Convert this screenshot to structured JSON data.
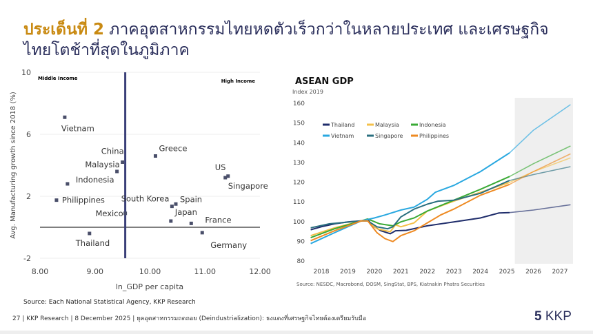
{
  "title": {
    "highlight": "ประเด็นที่ 2",
    "rest": " ภาคอุตสาหกรรมไทยหดตัวเร็วกว่าในหลายประเทศ และเศรษฐกิจไทยโตช้าที่สุดในภูมิภาค"
  },
  "chart_data": [
    {
      "type": "scatter",
      "xlabel": "ln_GDP per capita",
      "ylabel": "Avg. Manufacturing growth since 2018 (%)",
      "xlim": [
        8,
        12
      ],
      "ylim": [
        -2,
        10
      ],
      "xticks": [
        "8.00",
        "9.00",
        "10.00",
        "11.00",
        "12.00"
      ],
      "yticks": [
        "-2",
        "2",
        "6",
        "10"
      ],
      "grid": "horizontal",
      "annotations": [
        "Middle Income",
        "High Income"
      ],
      "divider_x": 9.55,
      "points": [
        {
          "label": "Vietnam",
          "x": 8.45,
          "y": 7.1
        },
        {
          "label": "Indonesia",
          "x": 8.5,
          "y": 2.8
        },
        {
          "label": "Philippines",
          "x": 8.3,
          "y": 1.75
        },
        {
          "label": "Thailand",
          "x": 8.9,
          "y": -0.4
        },
        {
          "label": "Malaysia",
          "x": 9.4,
          "y": 3.6
        },
        {
          "label": "China",
          "x": 9.5,
          "y": 4.2
        },
        {
          "label": "Mexico",
          "x": 9.55,
          "y": 0.9
        },
        {
          "label": "Greece",
          "x": 10.1,
          "y": 4.6
        },
        {
          "label": "South Korea",
          "x": 10.4,
          "y": 1.35
        },
        {
          "label": "Spain",
          "x": 10.47,
          "y": 1.5
        },
        {
          "label": "Japan",
          "x": 10.38,
          "y": 0.4
        },
        {
          "label": "France",
          "x": 10.75,
          "y": 0.25
        },
        {
          "label": "Germany",
          "x": 10.95,
          "y": -0.35
        },
        {
          "label": "US",
          "x": 11.37,
          "y": 3.2
        },
        {
          "label": "Singapore",
          "x": 11.42,
          "y": 3.3
        }
      ],
      "color": "#4a4f6a",
      "source": "Source: Each National Statistical Agency, KKP Research"
    },
    {
      "type": "line",
      "title": "ASEAN GDP",
      "subtitle": "Index 2019",
      "xlim": [
        2017.6,
        2027.5
      ],
      "ylim": [
        80,
        160
      ],
      "xticks": [
        "2018",
        "2019",
        "2020",
        "2021",
        "2022",
        "2023",
        "2024",
        "2025",
        "2026",
        "2027"
      ],
      "yticks": [
        "80",
        "90",
        "100",
        "110",
        "120",
        "130",
        "140",
        "150",
        "160"
      ],
      "forecast_shaded_from": 2025.3,
      "legend": "top-left",
      "series": [
        {
          "name": "Thailand",
          "color": "#1f2d6b",
          "points": [
            [
              2017.6,
              95.5
            ],
            [
              2018,
              97
            ],
            [
              2018.5,
              98.5
            ],
            [
              2019,
              99.5
            ],
            [
              2019.5,
              100
            ],
            [
              2019.75,
              100.5
            ],
            [
              2020,
              97
            ],
            [
              2020.25,
              95
            ],
            [
              2020.6,
              93.5
            ],
            [
              2020.8,
              95
            ],
            [
              2021.2,
              95.2
            ],
            [
              2022,
              97.5
            ],
            [
              2023,
              99.5
            ],
            [
              2024,
              101.5
            ],
            [
              2024.7,
              104
            ],
            [
              2025.1,
              104.2
            ],
            [
              2026,
              105.5
            ],
            [
              2027.4,
              108.2
            ]
          ]
        },
        {
          "name": "Malaysia",
          "color": "#f4c04a",
          "points": [
            [
              2017.6,
              92.5
            ],
            [
              2018.5,
              96.5
            ],
            [
              2019.5,
              100
            ],
            [
              2019.75,
              100
            ],
            [
              2020.1,
              96
            ],
            [
              2020.6,
              94.5
            ],
            [
              2020.8,
              98
            ],
            [
              2021,
              97
            ],
            [
              2021.5,
              99
            ],
            [
              2022,
              105
            ],
            [
              2023,
              110
            ],
            [
              2024,
              114.5
            ],
            [
              2025.1,
              119.5
            ],
            [
              2026,
              125
            ],
            [
              2027.4,
              132
            ]
          ]
        },
        {
          "name": "Indonesia",
          "color": "#3aaa35",
          "points": [
            [
              2017.6,
              91.5
            ],
            [
              2018.5,
              96
            ],
            [
              2019.5,
              100
            ],
            [
              2019.75,
              101
            ],
            [
              2020.2,
              98.5
            ],
            [
              2020.7,
              97.5
            ],
            [
              2021,
              99.5
            ],
            [
              2021.5,
              101.5
            ],
            [
              2022,
              105
            ],
            [
              2023,
              110.5
            ],
            [
              2024,
              116
            ],
            [
              2025.1,
              122.5
            ],
            [
              2026,
              129
            ],
            [
              2027.4,
              138
            ]
          ]
        },
        {
          "name": "Vietnam",
          "color": "#29a8e0",
          "points": [
            [
              2017.6,
              88.5
            ],
            [
              2018.5,
              94
            ],
            [
              2019.5,
              100
            ],
            [
              2020,
              101.5
            ],
            [
              2020.4,
              103
            ],
            [
              2021,
              105.5
            ],
            [
              2021.5,
              107
            ],
            [
              2022,
              111
            ],
            [
              2022.3,
              114.5
            ],
            [
              2023,
              118
            ],
            [
              2024,
              125
            ],
            [
              2025.1,
              134.5
            ],
            [
              2026,
              146
            ],
            [
              2027.4,
              159
            ]
          ]
        },
        {
          "name": "Singapore",
          "color": "#2a6f7f",
          "points": [
            [
              2017.6,
              96.5
            ],
            [
              2018.3,
              98.5
            ],
            [
              2019.5,
              100
            ],
            [
              2019.75,
              100
            ],
            [
              2020.1,
              97
            ],
            [
              2020.5,
              96
            ],
            [
              2020.7,
              97
            ],
            [
              2021,
              102
            ],
            [
              2021.5,
              106
            ],
            [
              2022,
              108.5
            ],
            [
              2022.4,
              110
            ],
            [
              2023,
              110.5
            ],
            [
              2024,
              114
            ],
            [
              2025.1,
              120.5
            ],
            [
              2026,
              123.5
            ],
            [
              2027.4,
              127.5
            ]
          ]
        },
        {
          "name": "Philippines",
          "color": "#ee8a22",
          "points": [
            [
              2017.6,
              90
            ],
            [
              2018.5,
              95
            ],
            [
              2019.5,
              100
            ],
            [
              2019.75,
              100
            ],
            [
              2020.1,
              94
            ],
            [
              2020.4,
              91
            ],
            [
              2020.7,
              89.5
            ],
            [
              2021,
              92.5
            ],
            [
              2021.5,
              95
            ],
            [
              2022,
              99
            ],
            [
              2022.5,
              103
            ],
            [
              2023,
              106
            ],
            [
              2024,
              113
            ],
            [
              2025.1,
              118.5
            ],
            [
              2026,
              125
            ],
            [
              2027.4,
              134
            ]
          ]
        }
      ],
      "source": "Source: NESDC, Macrobond, DOSM, SingStat, BPS, Kiatnakin Phatra Securities"
    }
  ],
  "footer": {
    "text": "27   | KKP Research | 8 December 2025 | ยุคอุตสาหกรรมถดถอย (Deindustrialization): ธงแดงที่เศรษฐกิจไทยต้องเตรียมรับมือ",
    "logo": "KKP"
  }
}
